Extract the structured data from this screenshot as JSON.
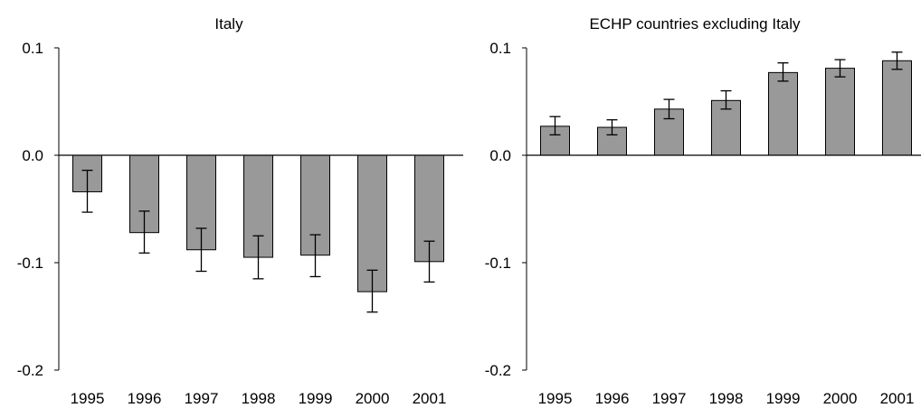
{
  "chart_data": [
    {
      "type": "bar",
      "title": "Italy",
      "xlabel": "",
      "ylabel": "",
      "categories": [
        "1995",
        "1996",
        "1997",
        "1998",
        "1999",
        "2000",
        "2001"
      ],
      "values": [
        -0.034,
        -0.072,
        -0.088,
        -0.095,
        -0.093,
        -0.127,
        -0.099
      ],
      "error_low": [
        -0.053,
        -0.091,
        -0.108,
        -0.115,
        -0.113,
        -0.146,
        -0.118
      ],
      "error_high": [
        -0.014,
        -0.052,
        -0.068,
        -0.075,
        -0.074,
        -0.107,
        -0.08
      ],
      "ylim": [
        -0.2,
        0.1
      ],
      "yticks": [
        0.1,
        0.0,
        -0.1,
        -0.2
      ],
      "ytick_labels": [
        "0.1",
        "0.0",
        "-0.1",
        "-0.2"
      ],
      "bar_color": "#999999",
      "grid": false
    },
    {
      "type": "bar",
      "title": "ECHP countries excluding Italy",
      "xlabel": "",
      "ylabel": "",
      "categories": [
        "1995",
        "1996",
        "1997",
        "1998",
        "1999",
        "2000",
        "2001"
      ],
      "values": [
        0.027,
        0.026,
        0.043,
        0.051,
        0.077,
        0.081,
        0.088
      ],
      "error_low": [
        0.019,
        0.019,
        0.034,
        0.043,
        0.069,
        0.073,
        0.08
      ],
      "error_high": [
        0.036,
        0.033,
        0.052,
        0.06,
        0.086,
        0.089,
        0.096
      ],
      "ylim": [
        -0.2,
        0.1
      ],
      "yticks": [
        0.1,
        0.0,
        -0.1,
        -0.2
      ],
      "ytick_labels": [
        "0.1",
        "0.0",
        "-0.1",
        "-0.2"
      ],
      "bar_color": "#999999",
      "grid": false
    }
  ]
}
